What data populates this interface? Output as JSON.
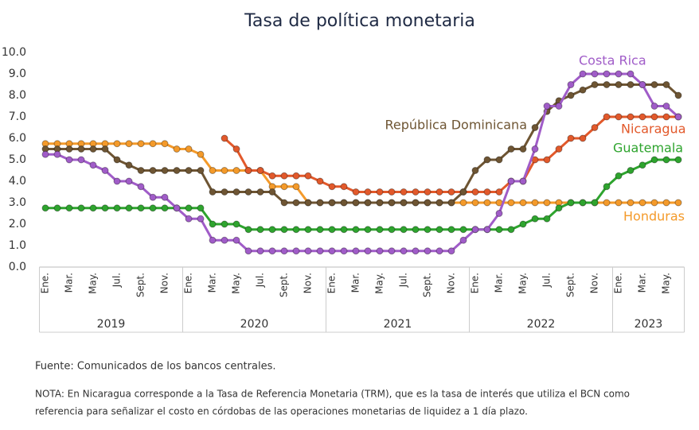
{
  "chart_data": {
    "type": "line",
    "title": "Tasa de política monetaria",
    "categories": [
      "Ene.",
      null,
      "Mar.",
      null,
      "May.",
      null,
      "Jul.",
      null,
      "Sept.",
      null,
      "Nov.",
      null,
      "Ene.",
      null,
      "Mar.",
      null,
      "May.",
      null,
      "Jul.",
      null,
      "Sept.",
      null,
      "Nov.",
      null,
      "Ene.",
      null,
      "Mar.",
      null,
      "May.",
      null,
      "Jul.",
      null,
      "Sept.",
      null,
      "Nov.",
      null,
      "Ene.",
      null,
      "Mar.",
      null,
      "May.",
      null,
      "Jul.",
      null,
      "Sept.",
      null,
      "Nov.",
      null,
      "Ene.",
      null,
      "Mar.",
      null,
      "May.",
      null
    ],
    "years": [
      "2019",
      "2020",
      "2021",
      "2022",
      "2023"
    ],
    "series": [
      {
        "name": "Costa Rica",
        "color": "#a05cc8",
        "values": [
          5.25,
          5.25,
          5.0,
          5.0,
          4.75,
          4.5,
          4.0,
          4.0,
          3.75,
          3.25,
          3.25,
          2.75,
          2.25,
          2.25,
          1.25,
          1.25,
          1.25,
          0.75,
          0.75,
          0.75,
          0.75,
          0.75,
          0.75,
          0.75,
          0.75,
          0.75,
          0.75,
          0.75,
          0.75,
          0.75,
          0.75,
          0.75,
          0.75,
          0.75,
          0.75,
          1.25,
          1.75,
          1.75,
          2.5,
          4.0,
          4.0,
          5.5,
          7.5,
          7.5,
          8.5,
          9.0,
          9.0,
          9.0,
          9.0,
          9.0,
          8.5,
          7.5,
          7.5,
          7.0
        ]
      },
      {
        "name": "República Dominicana",
        "color": "#6e5533",
        "values": [
          5.5,
          5.5,
          5.5,
          5.5,
          5.5,
          5.5,
          5.0,
          4.75,
          4.5,
          4.5,
          4.5,
          4.5,
          4.5,
          4.5,
          3.5,
          3.5,
          3.5,
          3.5,
          3.5,
          3.5,
          3.0,
          3.0,
          3.0,
          3.0,
          3.0,
          3.0,
          3.0,
          3.0,
          3.0,
          3.0,
          3.0,
          3.0,
          3.0,
          3.0,
          3.0,
          3.5,
          4.5,
          5.0,
          5.0,
          5.5,
          5.5,
          6.5,
          7.25,
          7.75,
          8.0,
          8.25,
          8.5,
          8.5,
          8.5,
          8.5,
          8.5,
          8.5,
          8.5,
          8.0
        ]
      },
      {
        "name": "Nicaragua",
        "color": "#e2592b",
        "values": [
          null,
          null,
          null,
          null,
          null,
          null,
          null,
          null,
          null,
          null,
          null,
          null,
          null,
          null,
          null,
          6.0,
          5.5,
          4.5,
          4.5,
          4.25,
          4.25,
          4.25,
          4.25,
          4.0,
          3.75,
          3.75,
          3.5,
          3.5,
          3.5,
          3.5,
          3.5,
          3.5,
          3.5,
          3.5,
          3.5,
          3.5,
          3.5,
          3.5,
          3.5,
          4.0,
          4.0,
          5.0,
          5.0,
          5.5,
          6.0,
          6.0,
          6.5,
          7.0,
          7.0,
          7.0,
          7.0,
          7.0,
          7.0,
          7.0
        ]
      },
      {
        "name": "Guatemala",
        "color": "#2ea42e",
        "values": [
          2.75,
          2.75,
          2.75,
          2.75,
          2.75,
          2.75,
          2.75,
          2.75,
          2.75,
          2.75,
          2.75,
          2.75,
          2.75,
          2.75,
          2.0,
          2.0,
          2.0,
          1.75,
          1.75,
          1.75,
          1.75,
          1.75,
          1.75,
          1.75,
          1.75,
          1.75,
          1.75,
          1.75,
          1.75,
          1.75,
          1.75,
          1.75,
          1.75,
          1.75,
          1.75,
          1.75,
          1.75,
          1.75,
          1.75,
          1.75,
          2.0,
          2.25,
          2.25,
          2.75,
          3.0,
          3.0,
          3.0,
          3.75,
          4.25,
          4.5,
          4.75,
          5.0,
          5.0,
          5.0
        ]
      },
      {
        "name": "Honduras",
        "color": "#f49a2a",
        "values": [
          5.75,
          5.75,
          5.75,
          5.75,
          5.75,
          5.75,
          5.75,
          5.75,
          5.75,
          5.75,
          5.75,
          5.5,
          5.5,
          5.25,
          4.5,
          4.5,
          4.5,
          4.5,
          4.5,
          3.75,
          3.75,
          3.75,
          3.0,
          3.0,
          3.0,
          3.0,
          3.0,
          3.0,
          3.0,
          3.0,
          3.0,
          3.0,
          3.0,
          3.0,
          3.0,
          3.0,
          3.0,
          3.0,
          3.0,
          3.0,
          3.0,
          3.0,
          3.0,
          3.0,
          3.0,
          3.0,
          3.0,
          3.0,
          3.0,
          3.0,
          3.0,
          3.0,
          3.0,
          3.0
        ]
      }
    ],
    "ylim": [
      0,
      10
    ],
    "yticks": [
      {
        "value": 0,
        "label": "0.0"
      },
      {
        "value": 1,
        "label": "1.0"
      },
      {
        "value": 2,
        "label": "2.0"
      },
      {
        "value": 3,
        "label": "3.0"
      },
      {
        "value": 4,
        "label": "4.0"
      },
      {
        "value": 5,
        "label": "5.0"
      },
      {
        "value": 6,
        "label": "6.0"
      },
      {
        "value": 7,
        "label": "7.0"
      },
      {
        "value": 8,
        "label": "8.0"
      },
      {
        "value": 9,
        "label": "9.0"
      },
      {
        "value": 10,
        "label": "10.0"
      }
    ],
    "grid": false,
    "source": "Fuente: Comunicados de los bancos centrales.",
    "note": [
      "NOTA: En Nicaragua corresponde a la Tasa de Referencia Monetaria (TRM), que es la tasa de interés que utiliza el BCN como",
      "referencia para señalizar el costo en córdobas de las operaciones monetarias de liquidez a 1 día plazo."
    ]
  }
}
